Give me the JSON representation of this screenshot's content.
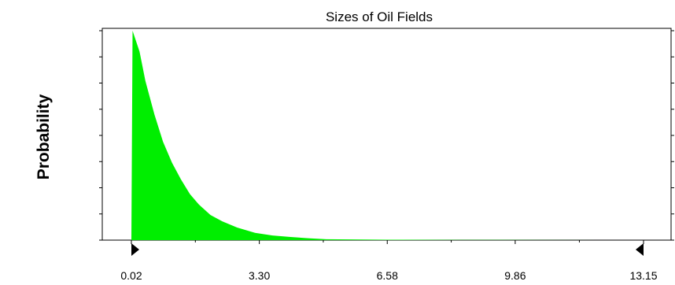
{
  "chart_data": {
    "type": "area",
    "title": "Sizes of Oil Fields",
    "xlabel": "",
    "ylabel": "Probability",
    "xlim": [
      0.02,
      13.15
    ],
    "ylim": [
      0,
      1
    ],
    "x_tick_labels": [
      "0.02",
      "3.30",
      "6.58",
      "9.86",
      "13.15"
    ],
    "x_tick_values": [
      0.02,
      3.3,
      6.58,
      9.86,
      13.15
    ],
    "y_ticks": [
      0,
      0.125,
      0.25,
      0.375,
      0.5,
      0.625,
      0.75,
      0.875,
      1.0
    ],
    "grid": false,
    "fill_color": "#00ee00",
    "marker_color": "#000000",
    "left_marker_value": 0.02,
    "right_marker_value": 13.15,
    "x": [
      0.02,
      0.05,
      0.23,
      0.38,
      0.61,
      0.83,
      1.06,
      1.29,
      1.52,
      1.75,
      2.05,
      2.35,
      2.73,
      3.19,
      3.64,
      4.1,
      4.56,
      5.02,
      6.58,
      8.5,
      10.5,
      13.15
    ],
    "y": [
      0.0,
      1.0,
      0.9,
      0.76,
      0.6,
      0.47,
      0.37,
      0.29,
      0.22,
      0.17,
      0.12,
      0.09,
      0.06,
      0.035,
      0.022,
      0.015,
      0.009,
      0.004,
      0.002,
      0.001,
      0.0005,
      0.0
    ]
  }
}
